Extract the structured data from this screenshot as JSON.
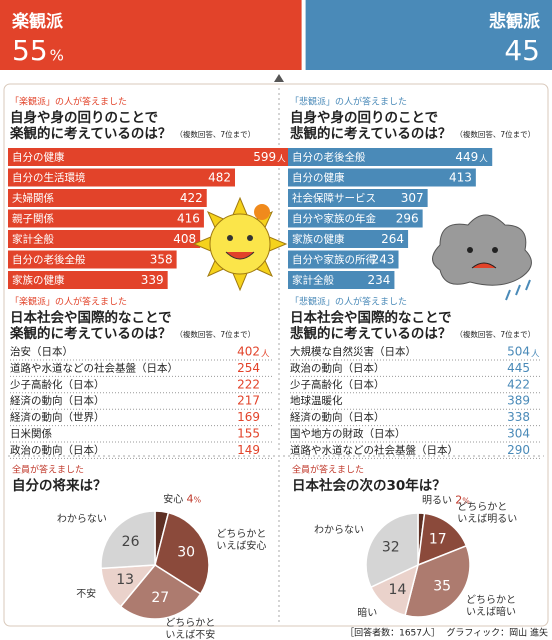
{
  "header": {
    "left": {
      "label": "楽観派",
      "value": 55,
      "unit": "%",
      "color": "#e2432a"
    },
    "right": {
      "label": "悲観派",
      "value": 45,
      "color": "#4a8ab8"
    }
  },
  "chart_data": [
    {
      "type": "bar",
      "subtitle": "「楽観派」の人が答えました",
      "title": [
        "自身や身の回りのことで",
        "楽観的に考えているのは？"
      ],
      "note": "（複数回答、7位まで）",
      "categories": [
        "自分の健康",
        "自分の生活環境",
        "夫婦関係",
        "親子関係",
        "家計全般",
        "自分の老後全般",
        "家族の健康"
      ],
      "values": [
        599,
        482,
        422,
        416,
        408,
        358,
        339
      ],
      "unit": "人",
      "color": "#e2432a",
      "xlim": [
        0,
        620
      ]
    },
    {
      "type": "bar",
      "subtitle": "「悲観派」の人が答えました",
      "title": [
        "自身や身の回りのことで",
        "悲観的に考えているのは？"
      ],
      "note": "（複数回答、7位まで）",
      "categories": [
        "自分の老後全般",
        "自分の健康",
        "社会保障サービス",
        "自分や家族の年金",
        "家族の健康",
        "自分や家族の所得",
        "家計全般"
      ],
      "values": [
        449,
        413,
        307,
        296,
        264,
        243,
        234
      ],
      "unit": "人",
      "color": "#4a8ab8",
      "xlim": [
        0,
        620
      ]
    },
    {
      "type": "ranking",
      "subtitle": "「楽観派」の人が答えました",
      "title": [
        "日本社会や国際的なことで",
        "楽観的に考えているのは？"
      ],
      "note": "（複数回答、7位まで）",
      "categories": [
        "治安（日本）",
        "道路や水道などの社会基盤（日本）",
        "少子高齢化（日本）",
        "経済の動向（日本）",
        "経済の動向（世界）",
        "日米関係",
        "政治の動向（日本）"
      ],
      "values": [
        402,
        254,
        222,
        217,
        169,
        155,
        149
      ],
      "unit": "人",
      "color": "#e2432a"
    },
    {
      "type": "ranking",
      "subtitle": "「悲観派」の人が答えました",
      "title": [
        "日本社会や国際的なことで",
        "悲観的に考えているのは？"
      ],
      "note": "（複数回答、7位まで）",
      "categories": [
        "大規模な自然災害（日本）",
        "政治の動向（日本）",
        "少子高齢化（日本）",
        "地球温暖化",
        "経済の動向（日本）",
        "国や地方の財政（日本）",
        "道路や水道などの社会基盤（日本）"
      ],
      "values": [
        504,
        445,
        422,
        389,
        338,
        304,
        290
      ],
      "unit": "人",
      "color": "#4a8ab8"
    },
    {
      "type": "pie",
      "subtitle": "全員が答えました",
      "title": [
        "自分の将来は？"
      ],
      "categories": [
        "安心",
        "どちらかと\nいえば安心",
        "どちらかと\nいえば不安",
        "不安",
        "わからない"
      ],
      "values": [
        4,
        30,
        27,
        13,
        26
      ],
      "unit": "%",
      "colors": [
        "#5e3024",
        "#8b4a3b",
        "#ad7b6f",
        "#ead2cb",
        "#d5d5d5"
      ]
    },
    {
      "type": "pie",
      "subtitle": "全員が答えました",
      "title": [
        "日本社会の次の30年は？"
      ],
      "categories": [
        "明るい",
        "どちらかと\nいえば明るい",
        "どちらかと\nいえば暗い",
        "暗い",
        "わからない"
      ],
      "values": [
        2,
        17,
        35,
        14,
        32
      ],
      "unit": "%",
      "colors": [
        "#5e3024",
        "#8b4a3b",
        "#ad7b6f",
        "#ead2cb",
        "#d5d5d5"
      ]
    }
  ],
  "footer": {
    "respondents": "［回答者数：1657人］",
    "credit": "グラフィック：岡山 進矢"
  }
}
